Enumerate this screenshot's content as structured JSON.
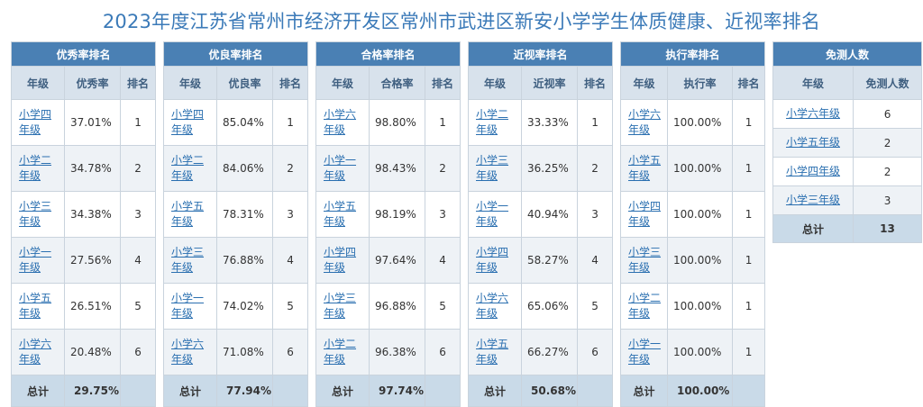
{
  "title": "2023年度江苏省常州市经济开发区常州市武进区新安小学学生体质健康、近视率排名",
  "headers": {
    "grade": "年级",
    "rank": "排名"
  },
  "total_label": "总计",
  "tables": [
    {
      "caption": "优秀率排名",
      "metric": "优秀率",
      "rows": [
        {
          "grade": "小学四年级",
          "value": "37.01%",
          "rank": "1"
        },
        {
          "grade": "小学二年级",
          "value": "34.78%",
          "rank": "2"
        },
        {
          "grade": "小学三年级",
          "value": "34.38%",
          "rank": "3"
        },
        {
          "grade": "小学一年级",
          "value": "27.56%",
          "rank": "4"
        },
        {
          "grade": "小学五年级",
          "value": "26.51%",
          "rank": "5"
        },
        {
          "grade": "小学六年级",
          "value": "20.48%",
          "rank": "6"
        }
      ],
      "total": "29.75%"
    },
    {
      "caption": "优良率排名",
      "metric": "优良率",
      "rows": [
        {
          "grade": "小学四年级",
          "value": "85.04%",
          "rank": "1"
        },
        {
          "grade": "小学二年级",
          "value": "84.06%",
          "rank": "2"
        },
        {
          "grade": "小学五年级",
          "value": "78.31%",
          "rank": "3"
        },
        {
          "grade": "小学三年级",
          "value": "76.88%",
          "rank": "4"
        },
        {
          "grade": "小学一年级",
          "value": "74.02%",
          "rank": "5"
        },
        {
          "grade": "小学六年级",
          "value": "71.08%",
          "rank": "6"
        }
      ],
      "total": "77.94%"
    },
    {
      "caption": "合格率排名",
      "metric": "合格率",
      "rows": [
        {
          "grade": "小学六年级",
          "value": "98.80%",
          "rank": "1"
        },
        {
          "grade": "小学一年级",
          "value": "98.43%",
          "rank": "2"
        },
        {
          "grade": "小学五年级",
          "value": "98.19%",
          "rank": "3"
        },
        {
          "grade": "小学四年级",
          "value": "97.64%",
          "rank": "4"
        },
        {
          "grade": "小学三年级",
          "value": "96.88%",
          "rank": "5"
        },
        {
          "grade": "小学二年级",
          "value": "96.38%",
          "rank": "6"
        }
      ],
      "total": "97.74%"
    },
    {
      "caption": "近视率排名",
      "metric": "近视率",
      "rows": [
        {
          "grade": "小学二年级",
          "value": "33.33%",
          "rank": "1"
        },
        {
          "grade": "小学三年级",
          "value": "36.25%",
          "rank": "2"
        },
        {
          "grade": "小学一年级",
          "value": "40.94%",
          "rank": "3"
        },
        {
          "grade": "小学四年级",
          "value": "58.27%",
          "rank": "4"
        },
        {
          "grade": "小学六年级",
          "value": "65.06%",
          "rank": "5"
        },
        {
          "grade": "小学五年级",
          "value": "66.27%",
          "rank": "6"
        }
      ],
      "total": "50.68%"
    },
    {
      "caption": "执行率排名",
      "metric": "执行率",
      "rows": [
        {
          "grade": "小学六年级",
          "value": "100.00%",
          "rank": "1"
        },
        {
          "grade": "小学五年级",
          "value": "100.00%",
          "rank": "1"
        },
        {
          "grade": "小学四年级",
          "value": "100.00%",
          "rank": "1"
        },
        {
          "grade": "小学三年级",
          "value": "100.00%",
          "rank": "1"
        },
        {
          "grade": "小学二年级",
          "value": "100.00%",
          "rank": "1"
        },
        {
          "grade": "小学一年级",
          "value": "100.00%",
          "rank": "1"
        }
      ],
      "total": "100.00%"
    }
  ],
  "exempt": {
    "caption": "免测人数",
    "col_grade": "年级",
    "col_count": "免测人数",
    "rows": [
      {
        "grade": "小学六年级",
        "count": "6"
      },
      {
        "grade": "小学五年级",
        "count": "2"
      },
      {
        "grade": "小学四年级",
        "count": "2"
      },
      {
        "grade": "小学三年级",
        "count": "3"
      }
    ],
    "total": "13"
  }
}
